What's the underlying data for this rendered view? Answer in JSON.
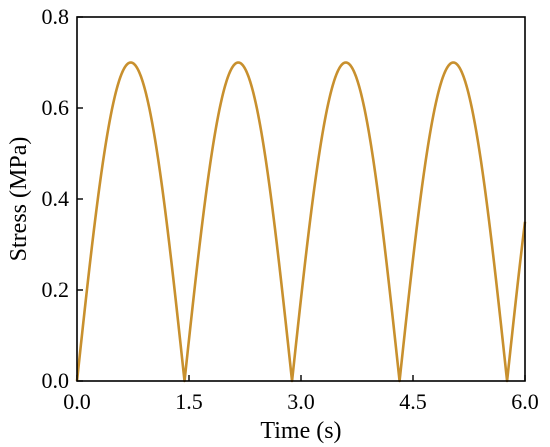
{
  "chart_data": {
    "type": "line",
    "title": "",
    "xlabel": "Time (s)",
    "ylabel": "Stress (MPa)",
    "xlim": [
      0,
      6
    ],
    "ylim": [
      0,
      0.8
    ],
    "x_ticks": [
      "0.0",
      "1.5",
      "3.0",
      "4.5",
      "6.0"
    ],
    "y_ticks": [
      "0.0",
      "0.2",
      "0.4",
      "0.6",
      "0.8"
    ],
    "grid": false,
    "legend": "none",
    "series": [
      {
        "color": "#C8902E",
        "x": [
          0.0,
          0.18,
          0.36,
          0.54,
          0.72,
          0.9,
          1.08,
          1.26,
          1.44,
          1.62,
          1.8,
          1.98,
          2.16,
          2.34,
          2.52,
          2.7,
          2.88,
          3.06,
          3.24,
          3.42,
          3.6,
          3.78,
          3.96,
          4.14,
          4.32,
          4.5,
          4.68,
          4.86,
          5.04,
          5.22,
          5.4,
          5.58,
          5.76,
          5.94,
          6.0
        ],
        "y": [
          0.0,
          0.268,
          0.495,
          0.647,
          0.7,
          0.647,
          0.495,
          0.268,
          0.0,
          0.268,
          0.495,
          0.647,
          0.7,
          0.647,
          0.495,
          0.268,
          0.0,
          0.268,
          0.495,
          0.647,
          0.7,
          0.647,
          0.495,
          0.268,
          0.0,
          0.268,
          0.495,
          0.647,
          0.7,
          0.647,
          0.495,
          0.268,
          0.0,
          0.268,
          0.42
        ]
      }
    ]
  }
}
